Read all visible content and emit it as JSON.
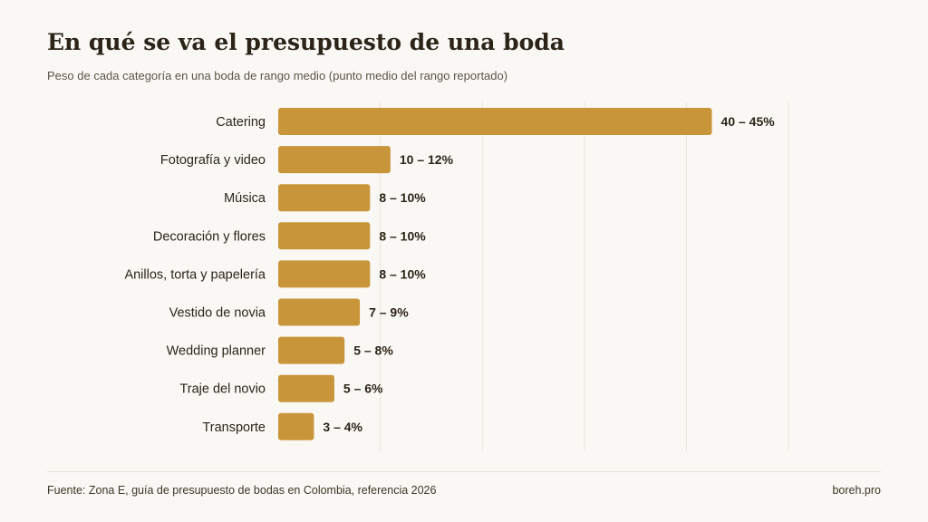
{
  "title": "En qué se va el presupuesto de una boda",
  "subtitle": "Peso de cada categoría en una boda de rango medio (punto medio del rango reportado)",
  "colors": {
    "bar": "#c9953a",
    "grid": "#e8e3d9",
    "label": "#2b2418"
  },
  "chart_data": {
    "type": "bar",
    "orientation": "horizontal",
    "categories": [
      "Catering",
      "Fotografía y video",
      "Música",
      "Decoración y flores",
      "Anillos, torta y papelería",
      "Vestido de novia",
      "Wedding planner",
      "Traje del novio",
      "Transporte"
    ],
    "values": [
      42.5,
      11,
      9,
      9,
      9,
      8,
      6.5,
      5.5,
      3.5
    ],
    "value_labels": [
      "40 – 45%",
      "10 – 12%",
      "8 – 10%",
      "8 – 10%",
      "8 – 10%",
      "7 – 9%",
      "5 – 8%",
      "5 – 6%",
      "3 – 4%"
    ],
    "xlim": [
      0,
      50
    ],
    "grid": true,
    "legend": "none"
  },
  "footer": {
    "source": "Fuente: Zona E, guía de presupuesto de bodas en Colombia, referencia 2026",
    "brand": "boreh.pro"
  }
}
